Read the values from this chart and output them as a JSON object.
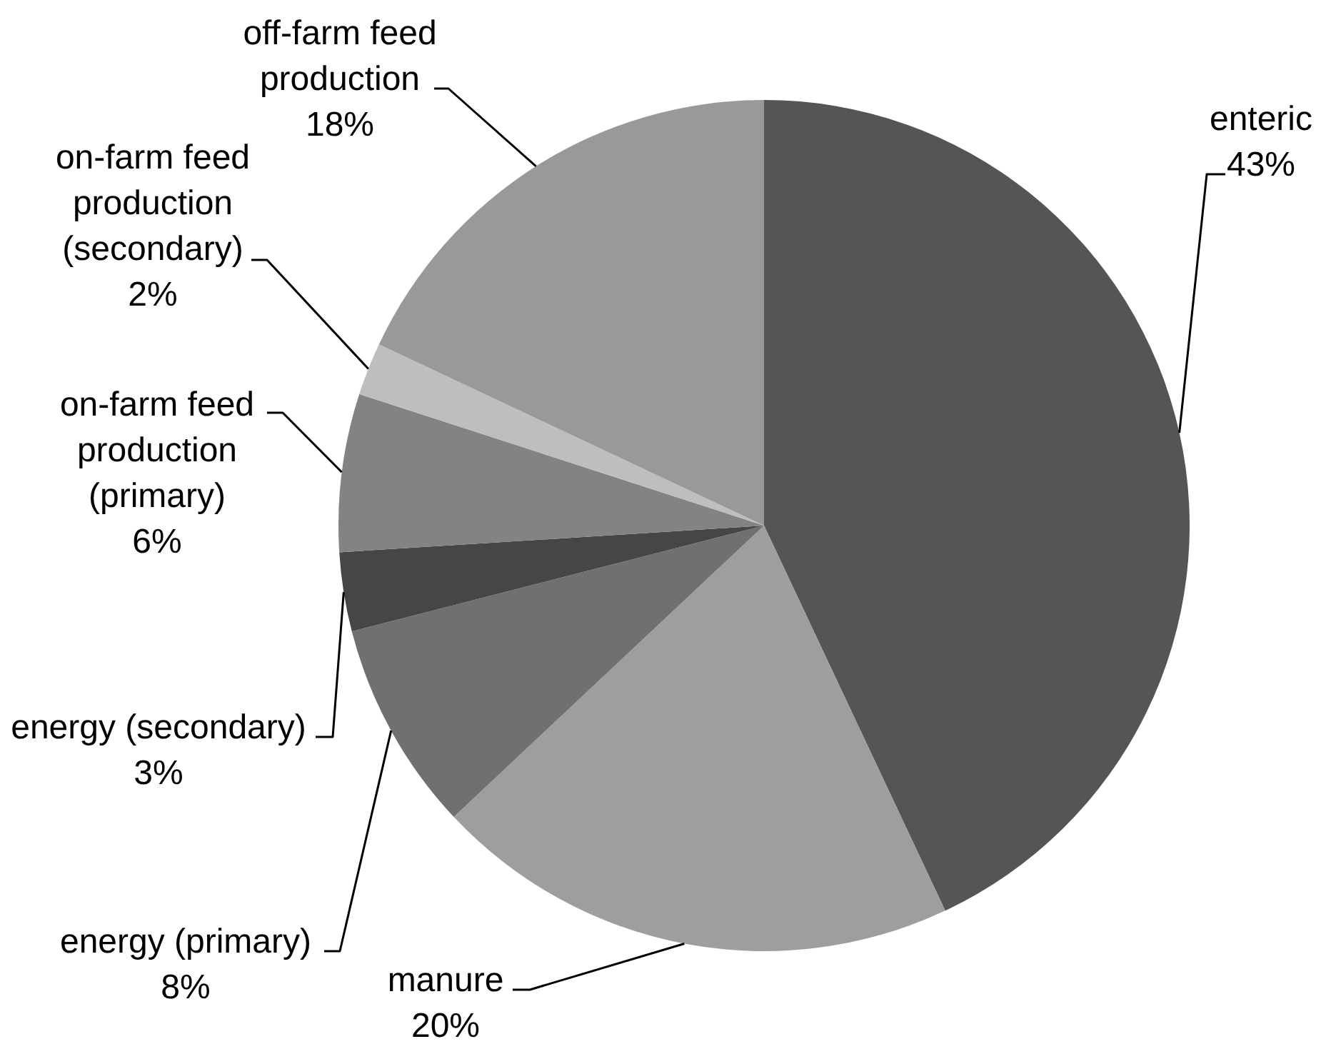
{
  "chart_data": {
    "type": "pie",
    "categories": [
      "enteric",
      "manure",
      "energy (primary)",
      "energy (secondary)",
      "on-farm feed production (primary)",
      "on-farm feed production (secondary)",
      "off-farm feed production"
    ],
    "values": [
      43,
      20,
      8,
      3,
      6,
      2,
      18
    ],
    "value_labels": [
      "43%",
      "20%",
      "8%",
      "3%",
      "6%",
      "2%",
      "18%"
    ],
    "colors": [
      "#555555",
      "#9e9e9e",
      "#707070",
      "#464646",
      "#838383",
      "#bebebe",
      "#999999"
    ]
  }
}
